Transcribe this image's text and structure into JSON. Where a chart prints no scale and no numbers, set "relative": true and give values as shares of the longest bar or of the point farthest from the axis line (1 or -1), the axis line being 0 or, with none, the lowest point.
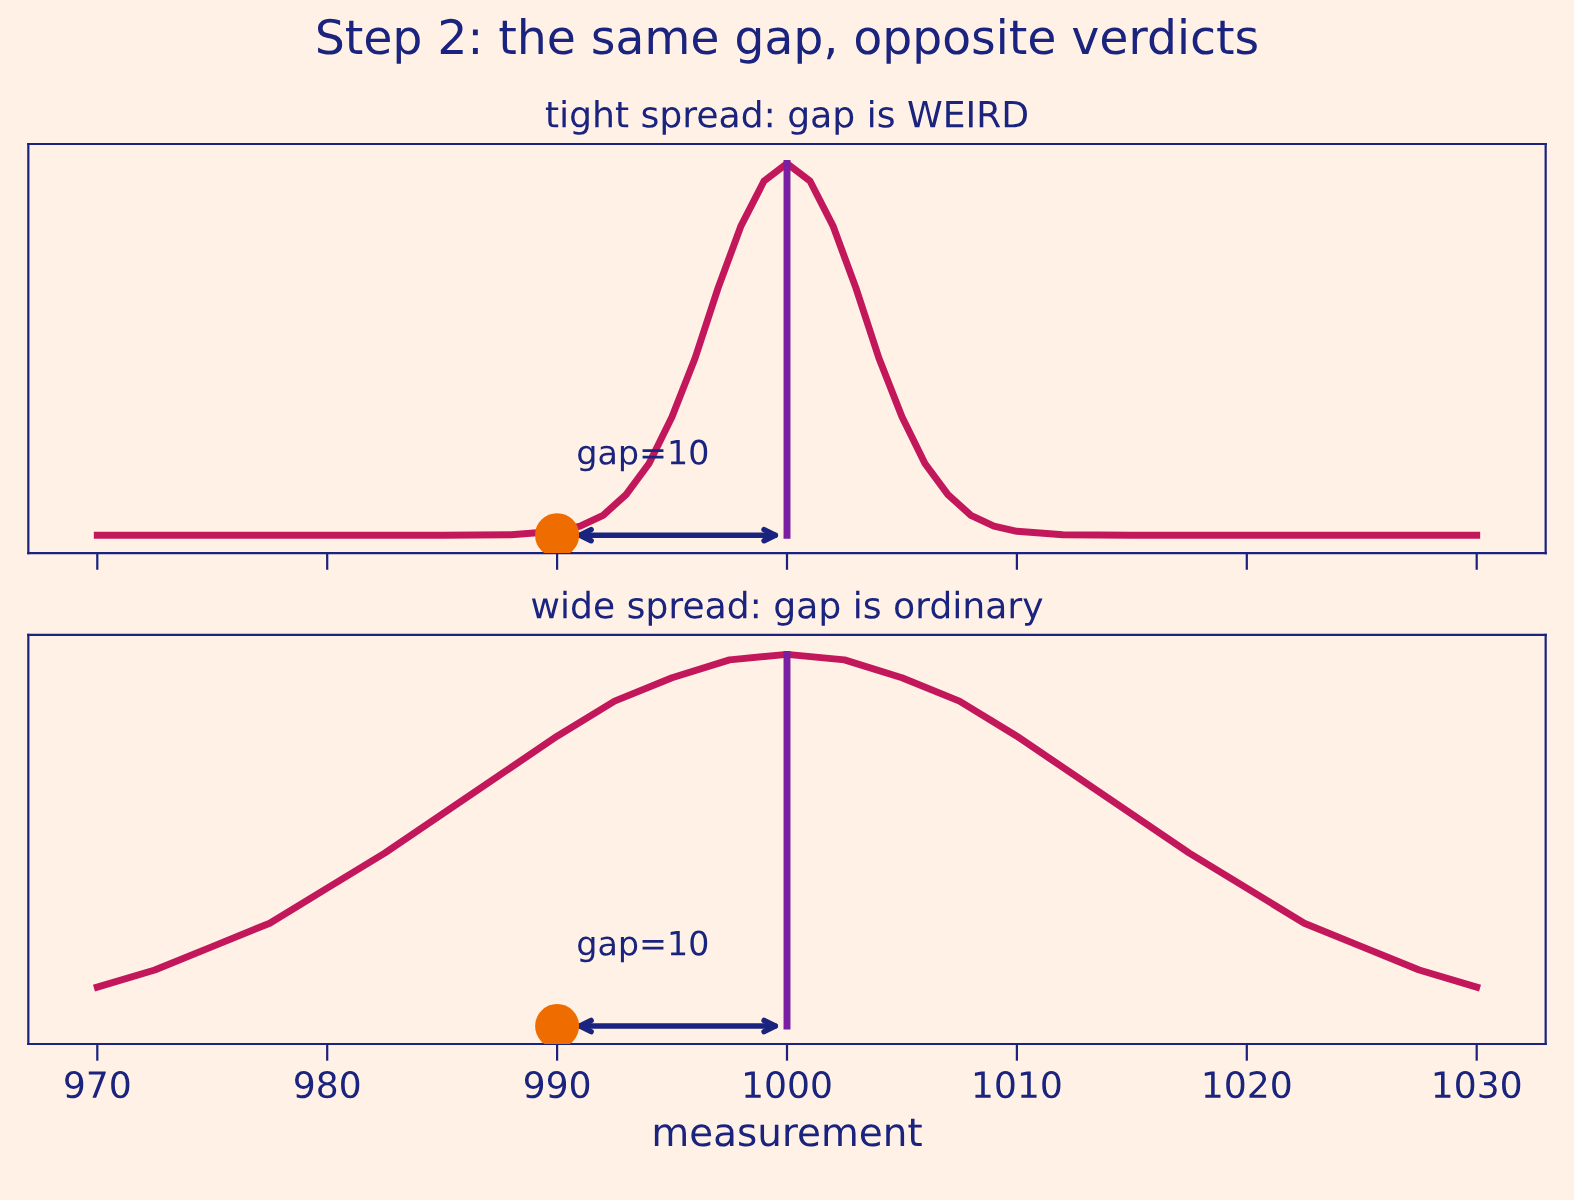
{
  "chart_data": [
    {
      "type": "line",
      "title": "Step 2: the same gap, opposite verdicts",
      "subtitle": "tight spread: gap is WEIRD",
      "relative": true,
      "xlim": [
        967,
        1033
      ],
      "xticks": [
        970,
        980,
        990,
        1000,
        1010,
        1020,
        1030
      ],
      "tick_labels": false,
      "grid": false,
      "line_style": "solid",
      "series": [
        {
          "color": "#c2185b",
          "x": [
            970,
            980,
            985,
            988,
            990,
            991,
            992,
            993,
            994,
            995,
            996,
            997,
            998,
            999,
            1000,
            1001,
            1002,
            1003,
            1004,
            1005,
            1006,
            1007,
            1008,
            1009,
            1010,
            1012,
            1015,
            1020,
            1030
          ],
          "values": [
            0.046,
            0.046,
            0.046,
            0.047,
            0.056,
            0.069,
            0.097,
            0.15,
            0.23,
            0.35,
            0.5,
            0.68,
            0.84,
            0.955,
            1,
            0.955,
            0.84,
            0.68,
            0.5,
            0.35,
            0.23,
            0.15,
            0.097,
            0.069,
            0.056,
            0.047,
            0.046,
            0.046,
            0.046
          ]
        },
        {
          "color": "#7b1fa2",
          "x": [
            1000,
            1000
          ],
          "values": [
            0.046,
            1
          ]
        },
        {
          "type": "scatter",
          "marker": "circle",
          "color": "#ef6c00",
          "x": [
            990
          ],
          "values": [
            0.046
          ]
        }
      ],
      "annotations": [
        "gap=10"
      ]
    },
    {
      "type": "line",
      "title": "wide spread: gap is ordinary",
      "relative": true,
      "xlabel": "measurement",
      "xlim": [
        967,
        1033
      ],
      "xticks": [
        970,
        980,
        990,
        1000,
        1010,
        1020,
        1030
      ],
      "tick_labels": "x",
      "grid": false,
      "line_style": "solid",
      "series": [
        {
          "color": "#c2185b",
          "x": [
            970,
            972.5,
            975,
            977.5,
            980,
            982.5,
            985,
            987.5,
            990,
            992.5,
            995,
            997.5,
            1000,
            1002.5,
            1005,
            1007.5,
            1010,
            1012.5,
            1015,
            1017.5,
            1020,
            1022.5,
            1025,
            1027.5,
            1030
          ],
          "values": [
            0.146,
            0.19,
            0.25,
            0.31,
            0.4,
            0.49,
            0.59,
            0.69,
            0.79,
            0.88,
            0.94,
            0.986,
            1,
            0.986,
            0.94,
            0.88,
            0.79,
            0.69,
            0.59,
            0.49,
            0.4,
            0.31,
            0.25,
            0.19,
            0.146
          ]
        },
        {
          "color": "#7b1fa2",
          "x": [
            1000,
            1000
          ],
          "values": [
            0.046,
            1
          ]
        },
        {
          "type": "scatter",
          "marker": "circle",
          "color": "#ef6c00",
          "x": [
            990
          ],
          "values": [
            0.046
          ]
        }
      ],
      "annotations": [
        "gap=10"
      ]
    }
  ]
}
